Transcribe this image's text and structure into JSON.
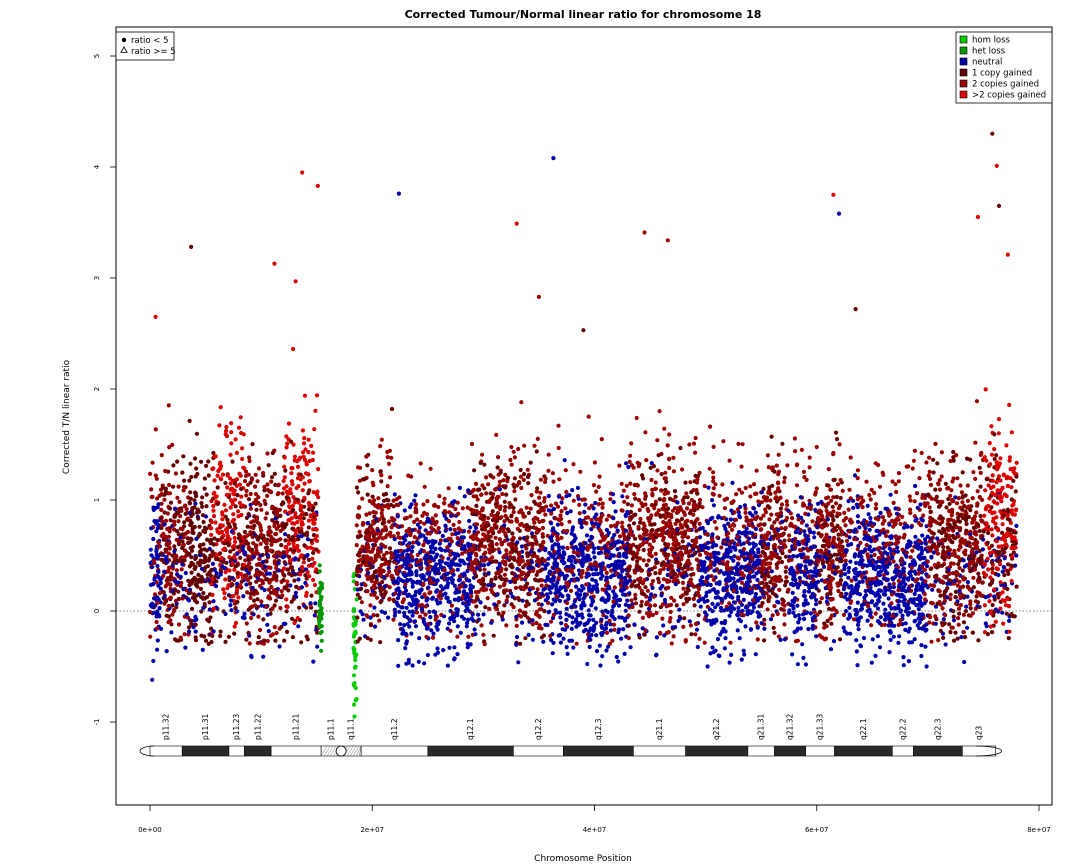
{
  "chart_data": {
    "type": "scatter",
    "title": "Corrected Tumour/Normal linear ratio for chromosome  18",
    "xlabel": "Chromosome Position",
    "ylabel": "Corrected T/N linear ratio",
    "xlim": [
      0,
      80000000
    ],
    "ylim": [
      -1.8,
      5.3
    ],
    "x_ticks": [
      0,
      20000000,
      40000000,
      60000000,
      80000000
    ],
    "x_tick_labels": [
      "0e+00",
      "2e+07",
      "4e+07",
      "6e+07",
      "8e+07"
    ],
    "y_ticks": [
      -1,
      0,
      1,
      2,
      3,
      4,
      5
    ],
    "y_tick_labels": [
      "-1",
      "0",
      "1",
      "2",
      "3",
      "4",
      "5"
    ],
    "reference_line": 0,
    "shape_legend": {
      "placement": "top-left",
      "entries": [
        {
          "label": "ratio < 5",
          "symbol": "dot"
        },
        {
          "label": "ratio >= 5",
          "symbol": "triangle"
        }
      ]
    },
    "legend": {
      "placement": "top-right",
      "entries": [
        {
          "label": "hom loss",
          "color": "#00cc00"
        },
        {
          "label": "het loss",
          "color": "#009900"
        },
        {
          "label": "neutral",
          "color": "#0000aa"
        },
        {
          "label": "1 copy gained",
          "color": "#660000"
        },
        {
          "label": "2 copies gained",
          "color": "#990000"
        },
        {
          "label": ">2 copies gained",
          "color": "#dd0000"
        }
      ]
    },
    "segments": [
      {
        "start": 0,
        "end": 1000000,
        "state": "neutral"
      },
      {
        "start": 1000000,
        "end": 3500000,
        "state": "2 copies gained"
      },
      {
        "start": 3500000,
        "end": 5500000,
        "state": "1 copy gained"
      },
      {
        "start": 5500000,
        "end": 8500000,
        "state": ">2 copies gained"
      },
      {
        "start": 8500000,
        "end": 12000000,
        "state": "2 copies gained"
      },
      {
        "start": 12000000,
        "end": 15200000,
        "state": ">2 copies gained"
      },
      {
        "start": 15200000,
        "end": 15500000,
        "state": "het loss"
      },
      {
        "start": 18300000,
        "end": 18600000,
        "state": "hom loss"
      },
      {
        "start": 18600000,
        "end": 22000000,
        "state": "2 copies gained"
      },
      {
        "start": 22000000,
        "end": 29000000,
        "state": "neutral"
      },
      {
        "start": 29000000,
        "end": 35500000,
        "state": "2 copies gained"
      },
      {
        "start": 35500000,
        "end": 43000000,
        "state": "neutral"
      },
      {
        "start": 43000000,
        "end": 49500000,
        "state": "2 copies gained"
      },
      {
        "start": 49500000,
        "end": 55000000,
        "state": "neutral"
      },
      {
        "start": 55000000,
        "end": 57500000,
        "state": "2 copies gained"
      },
      {
        "start": 57500000,
        "end": 60000000,
        "state": "neutral"
      },
      {
        "start": 60000000,
        "end": 62500000,
        "state": "2 copies gained"
      },
      {
        "start": 62500000,
        "end": 70000000,
        "state": "neutral"
      },
      {
        "start": 70000000,
        "end": 75000000,
        "state": "2 copies gained"
      },
      {
        "start": 75000000,
        "end": 78000000,
        "state": ">2 copies gained"
      }
    ],
    "outliers": [
      {
        "x": 500000,
        "y": 2.65,
        "state": ">2 copies gained"
      },
      {
        "x": 3700000,
        "y": 3.28,
        "state": "1 copy gained"
      },
      {
        "x": 11200000,
        "y": 3.13,
        "state": ">2 copies gained"
      },
      {
        "x": 13700000,
        "y": 3.95,
        "state": ">2 copies gained"
      },
      {
        "x": 15100000,
        "y": 3.83,
        "state": ">2 copies gained"
      },
      {
        "x": 13100000,
        "y": 2.97,
        "state": ">2 copies gained"
      },
      {
        "x": 22400000,
        "y": 3.76,
        "state": "neutral"
      },
      {
        "x": 33000000,
        "y": 3.49,
        "state": ">2 copies gained"
      },
      {
        "x": 36300000,
        "y": 4.08,
        "state": "neutral"
      },
      {
        "x": 35000000,
        "y": 2.83,
        "state": "2 copies gained"
      },
      {
        "x": 39000000,
        "y": 2.53,
        "state": "1 copy gained"
      },
      {
        "x": 44500000,
        "y": 3.41,
        "state": "2 copies gained"
      },
      {
        "x": 46600000,
        "y": 3.34,
        "state": "2 copies gained"
      },
      {
        "x": 61500000,
        "y": 3.75,
        "state": ">2 copies gained"
      },
      {
        "x": 62000000,
        "y": 3.58,
        "state": "neutral"
      },
      {
        "x": 63500000,
        "y": 2.72,
        "state": "1 copy gained"
      },
      {
        "x": 74500000,
        "y": 3.55,
        "state": ">2 copies gained"
      },
      {
        "x": 75800000,
        "y": 4.3,
        "state": "1 copy gained"
      },
      {
        "x": 76200000,
        "y": 4.01,
        "state": ">2 copies gained"
      },
      {
        "x": 76400000,
        "y": 3.65,
        "state": "1 copy gained"
      },
      {
        "x": 77200000,
        "y": 3.21,
        "state": ">2 copies gained"
      },
      {
        "x": 200000,
        "y": -0.62,
        "state": "neutral"
      },
      {
        "x": 18400000,
        "y": -0.95,
        "state": "hom loss"
      }
    ],
    "ideogram": {
      "bands": [
        {
          "name": "p11.32",
          "start": 0,
          "end": 2900000,
          "stain": "gneg"
        },
        {
          "name": "p11.31",
          "start": 2900000,
          "end": 7100000,
          "stain": "gpos"
        },
        {
          "name": "p11.23",
          "start": 7100000,
          "end": 8500000,
          "stain": "gneg"
        },
        {
          "name": "p11.22",
          "start": 8500000,
          "end": 10900000,
          "stain": "gpos"
        },
        {
          "name": "p11.21",
          "start": 10900000,
          "end": 15400000,
          "stain": "gneg"
        },
        {
          "name": "p11.1",
          "start": 15400000,
          "end": 17200000,
          "stain": "acen"
        },
        {
          "name": "q11.1",
          "start": 17200000,
          "end": 19000000,
          "stain": "acen"
        },
        {
          "name": "q11.2",
          "start": 19000000,
          "end": 25000000,
          "stain": "gneg"
        },
        {
          "name": "q12.1",
          "start": 25000000,
          "end": 32700000,
          "stain": "gpos"
        },
        {
          "name": "q12.2",
          "start": 32700000,
          "end": 37200000,
          "stain": "gneg"
        },
        {
          "name": "q12.3",
          "start": 37200000,
          "end": 43500000,
          "stain": "gpos"
        },
        {
          "name": "q21.1",
          "start": 43500000,
          "end": 48200000,
          "stain": "gneg"
        },
        {
          "name": "q21.2",
          "start": 48200000,
          "end": 53800000,
          "stain": "gpos"
        },
        {
          "name": "q21.31",
          "start": 53800000,
          "end": 56200000,
          "stain": "gneg"
        },
        {
          "name": "q21.32",
          "start": 56200000,
          "end": 59000000,
          "stain": "gpos"
        },
        {
          "name": "q21.33",
          "start": 59000000,
          "end": 61600000,
          "stain": "gneg"
        },
        {
          "name": "q22.1",
          "start": 61600000,
          "end": 66800000,
          "stain": "gpos"
        },
        {
          "name": "q22.2",
          "start": 66800000,
          "end": 68700000,
          "stain": "gneg"
        },
        {
          "name": "q22.3",
          "start": 68700000,
          "end": 73100000,
          "stain": "gpos"
        },
        {
          "name": "q23",
          "start": 73100000,
          "end": 76100000,
          "stain": "gneg"
        }
      ]
    }
  }
}
